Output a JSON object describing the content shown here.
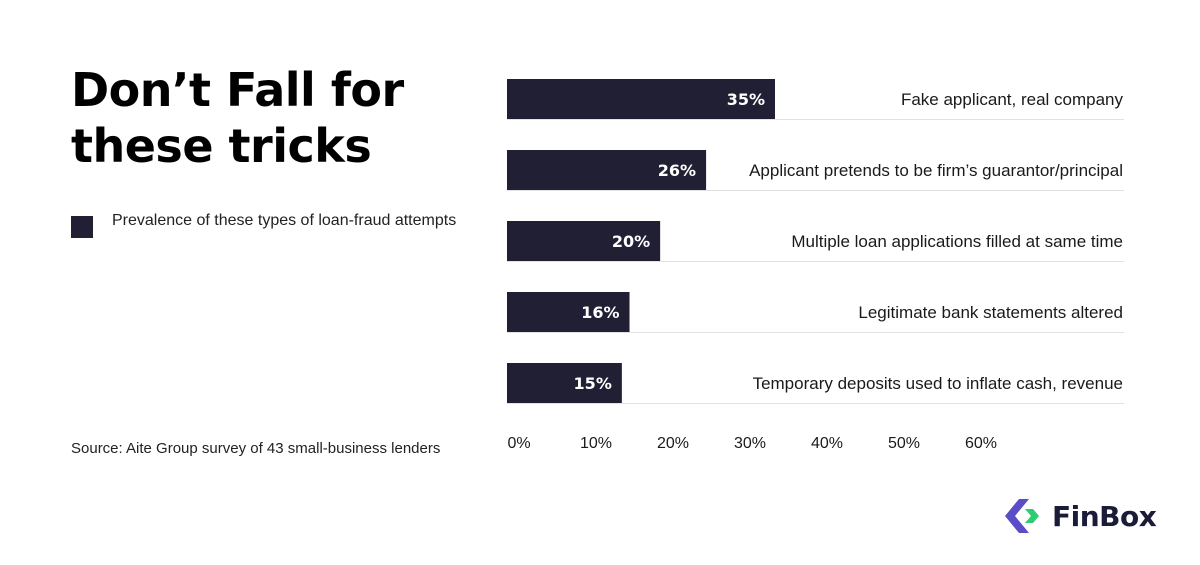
{
  "title": "Don’t Fall for these tricks",
  "legend": {
    "label": "Prevalence of these types of loan-fraud attempts",
    "color": "#211f33"
  },
  "source": "Source: Aite Group survey of 43 small-business lenders",
  "brand": {
    "name": "FinBox",
    "icon": "finbox-logo-icon",
    "colors": [
      "#5b4dc8",
      "#2ecc71"
    ]
  },
  "chart_data": {
    "type": "bar",
    "orientation": "horizontal",
    "categories": [
      "Fake applicant, real company",
      "Applicant pretends to be firm’s guarantor/principal",
      "Multiple loan applications filled at same time",
      "Legitimate bank statements altered",
      "Temporary deposits used to inflate cash, revenue"
    ],
    "values": [
      35,
      26,
      20,
      16,
      15
    ],
    "value_labels": [
      "35%",
      "26%",
      "20%",
      "16%",
      "15%"
    ],
    "xticks": [
      "0%",
      "10%",
      "20%",
      "30%",
      "40%",
      "50%",
      "60%"
    ],
    "xlim": [
      0,
      60
    ],
    "bar_color": "#211f33",
    "grid": false
  }
}
